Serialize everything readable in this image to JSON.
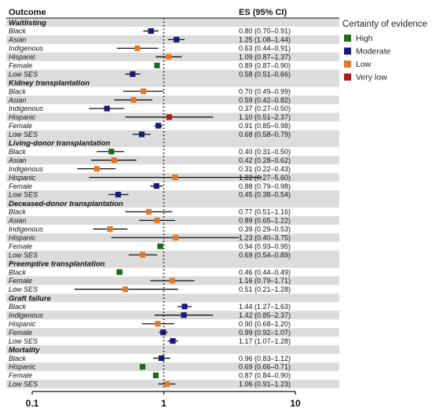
{
  "chart_data": {
    "type": "forest",
    "headers": {
      "outcome": "Outcome",
      "es": "ES (95% CI)"
    },
    "xscale": "log",
    "xlim": [
      0.1,
      10
    ],
    "xticks": [
      "0.1",
      "1",
      "10"
    ],
    "reference_line": 1,
    "legend": {
      "title": "Certainty of evidence",
      "placement": "right",
      "items": [
        {
          "name": "High",
          "color": "#1a6b1a"
        },
        {
          "name": "Moderate",
          "color": "#1a1a7a"
        },
        {
          "name": "Low",
          "color": "#e07a2a"
        },
        {
          "name": "Very low",
          "color": "#b01a1a"
        }
      ]
    },
    "groups": [
      {
        "title": "Waitlisting",
        "rows": [
          {
            "label": "Black",
            "es": 0.8,
            "lo": 0.7,
            "hi": 0.91,
            "text": "0.80 (0.70–0.91)",
            "certainty": "Moderate"
          },
          {
            "label": "Asian",
            "es": 1.25,
            "lo": 1.08,
            "hi": 1.44,
            "text": "1.25 (1.08–1.44)",
            "certainty": "Moderate"
          },
          {
            "label": "Indigenous",
            "es": 0.63,
            "lo": 0.44,
            "hi": 0.91,
            "text": "0.63 (0.44–0.91)",
            "certainty": "Low"
          },
          {
            "label": "Hispanic",
            "es": 1.09,
            "lo": 0.87,
            "hi": 1.37,
            "text": "1.09 (0.87–1.37)",
            "certainty": "Low"
          },
          {
            "label": "Female",
            "es": 0.89,
            "lo": 0.87,
            "hi": 0.9,
            "text": "0.89 (0.87–0.90)",
            "certainty": "High"
          },
          {
            "label": "Low SES",
            "es": 0.58,
            "lo": 0.51,
            "hi": 0.66,
            "text": "0.58 (0.51–0.66)",
            "certainty": "Moderate"
          }
        ]
      },
      {
        "title": "Kidney transplantation",
        "rows": [
          {
            "label": "Black",
            "es": 0.7,
            "lo": 0.49,
            "hi": 0.99,
            "text": "0.70 (0.49–0.99)",
            "certainty": "Low"
          },
          {
            "label": "Asian",
            "es": 0.59,
            "lo": 0.42,
            "hi": 0.82,
            "text": "0.59 (0.42–0.82)",
            "certainty": "Low"
          },
          {
            "label": "Indigenous",
            "es": 0.37,
            "lo": 0.27,
            "hi": 0.5,
            "text": "0.37 (0.27–0.50)",
            "certainty": "Moderate"
          },
          {
            "label": "Hispanic",
            "es": 1.1,
            "lo": 0.51,
            "hi": 2.37,
            "text": "1.10 (0.51–2.37)",
            "certainty": "Very low"
          },
          {
            "label": "Female",
            "es": 0.91,
            "lo": 0.85,
            "hi": 0.98,
            "text": "0.91 (0.85–0.98)",
            "certainty": "Moderate"
          },
          {
            "label": "Low SES",
            "es": 0.68,
            "lo": 0.58,
            "hi": 0.79,
            "text": "0.68 (0.58–0.79)",
            "certainty": "Moderate"
          }
        ]
      },
      {
        "title": "Living-donor transplantation",
        "rows": [
          {
            "label": "Black",
            "es": 0.4,
            "lo": 0.31,
            "hi": 0.5,
            "text": "0.40 (0.31–0.50)",
            "certainty": "High"
          },
          {
            "label": "Asian",
            "es": 0.42,
            "lo": 0.28,
            "hi": 0.62,
            "text": "0.42 (0.28–0.62)",
            "certainty": "Low"
          },
          {
            "label": "Indigenous",
            "es": 0.31,
            "lo": 0.22,
            "hi": 0.43,
            "text": "0.31 (0.22–0.43)",
            "certainty": "Low"
          },
          {
            "label": "Hispanic",
            "es": 1.22,
            "lo": 0.27,
            "hi": 5.6,
            "text": "1.22 (0.27–5.60)",
            "certainty": "Low"
          },
          {
            "label": "Female",
            "es": 0.88,
            "lo": 0.79,
            "hi": 0.98,
            "text": "0.88 (0.79–0.98)",
            "certainty": "Moderate"
          },
          {
            "label": "Low SES",
            "es": 0.45,
            "lo": 0.38,
            "hi": 0.54,
            "text": "0.45 (0.38–0.54)",
            "certainty": "Moderate"
          }
        ]
      },
      {
        "title": "Deceased-donor transplantation",
        "rows": [
          {
            "label": "Black",
            "es": 0.77,
            "lo": 0.51,
            "hi": 1.16,
            "text": "0.77 (0.51–1.16)",
            "certainty": "Low"
          },
          {
            "label": "Asian",
            "es": 0.89,
            "lo": 0.65,
            "hi": 1.22,
            "text": "0.89 (0.65–1.22)",
            "certainty": "Low"
          },
          {
            "label": "Indigenous",
            "es": 0.39,
            "lo": 0.29,
            "hi": 0.53,
            "text": "0.39 (0.29–0.53)",
            "certainty": "Low"
          },
          {
            "label": "Hispanic",
            "es": 1.23,
            "lo": 0.4,
            "hi": 3.75,
            "text": "1.23 (0.40–3.75)",
            "certainty": "Low"
          },
          {
            "label": "Female",
            "es": 0.94,
            "lo": 0.93,
            "hi": 0.95,
            "text": "0.94 (0.93–0.95)",
            "certainty": "High"
          },
          {
            "label": "Low SES",
            "es": 0.69,
            "lo": 0.54,
            "hi": 0.89,
            "text": "0.69 (0.54–0.89)",
            "certainty": "Low"
          }
        ]
      },
      {
        "title": "Preemptive transplantation",
        "rows": [
          {
            "label": "Black",
            "es": 0.46,
            "lo": 0.44,
            "hi": 0.49,
            "text": "0.46 (0.44–0.49)",
            "certainty": "High"
          },
          {
            "label": "Female",
            "es": 1.16,
            "lo": 0.79,
            "hi": 1.71,
            "text": "1.16 (0.79–1.71)",
            "certainty": "Low"
          },
          {
            "label": "Low SES",
            "es": 0.51,
            "lo": 0.21,
            "hi": 1.28,
            "text": "0.51 (0.21–1.28)",
            "certainty": "Low"
          }
        ]
      },
      {
        "title": "Graft failure",
        "rows": [
          {
            "label": "Black",
            "es": 1.44,
            "lo": 1.27,
            "hi": 1.63,
            "text": "1.44 (1.27–1.63)",
            "certainty": "Moderate"
          },
          {
            "label": "Indigenous",
            "es": 1.42,
            "lo": 0.85,
            "hi": 2.37,
            "text": "1.42 (0.85–2.37)",
            "certainty": "Moderate"
          },
          {
            "label": "Hispanic",
            "es": 0.9,
            "lo": 0.68,
            "hi": 1.2,
            "text": "0.90 (0.68–1.20)",
            "certainty": "Low"
          },
          {
            "label": "Female",
            "es": 0.99,
            "lo": 0.92,
            "hi": 1.07,
            "text": "0.99 (0.92–1.07)",
            "certainty": "Moderate"
          },
          {
            "label": "Low SES",
            "es": 1.17,
            "lo": 1.07,
            "hi": 1.28,
            "text": "1.17 (1.07–1.28)",
            "certainty": "Moderate"
          }
        ]
      },
      {
        "title": "Mortality",
        "rows": [
          {
            "label": "Black",
            "es": 0.96,
            "lo": 0.83,
            "hi": 1.12,
            "text": "0.96 (0.83–1.12)",
            "certainty": "Moderate"
          },
          {
            "label": "Hispanic",
            "es": 0.69,
            "lo": 0.66,
            "hi": 0.71,
            "text": "0.69 (0.66–0.71)",
            "certainty": "High"
          },
          {
            "label": "Female",
            "es": 0.87,
            "lo": 0.84,
            "hi": 0.9,
            "text": "0.87 (0.84–0.90)",
            "certainty": "High"
          },
          {
            "label": "Low SES",
            "es": 1.06,
            "lo": 0.91,
            "hi": 1.23,
            "text": "1.06 (0.91–1.23)",
            "certainty": "Low"
          }
        ]
      }
    ]
  }
}
